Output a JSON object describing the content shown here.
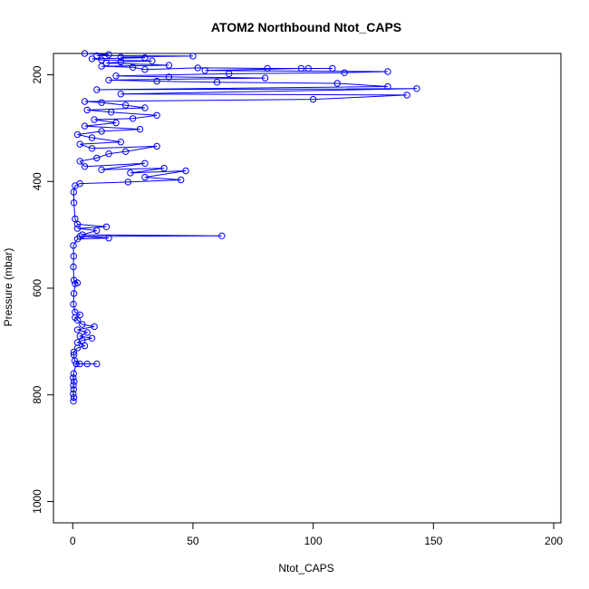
{
  "chart_data": {
    "type": "scatter",
    "title": "ATOM2 Northbound Ntot_CAPS",
    "xlabel": "Ntot_CAPS",
    "ylabel": "Pressure (mbar)",
    "xlim": [
      -8,
      203
    ],
    "ylim": [
      1040,
      160
    ],
    "y_inverted": true,
    "x_ticks": [
      0,
      50,
      100,
      150,
      200
    ],
    "y_ticks": [
      200,
      400,
      600,
      800,
      1000
    ],
    "grid": false,
    "legend": "none",
    "series": [
      {
        "style": "line+open-circles",
        "color": "#0000ff",
        "points": [
          [
            0.3,
            812
          ],
          [
            0.5,
            805
          ],
          [
            0.2,
            798
          ],
          [
            0.4,
            790
          ],
          [
            0.3,
            782
          ],
          [
            0.6,
            775
          ],
          [
            0.2,
            768
          ],
          [
            0.4,
            760
          ],
          [
            1.5,
            742
          ],
          [
            6,
            742
          ],
          [
            10,
            742
          ],
          [
            3,
            742
          ],
          [
            0.8,
            736
          ],
          [
            0.5,
            725
          ],
          [
            0.4,
            720
          ],
          [
            2,
            712
          ],
          [
            5,
            708
          ],
          [
            2,
            702
          ],
          [
            4,
            698
          ],
          [
            8,
            694
          ],
          [
            3,
            690
          ],
          [
            6,
            683
          ],
          [
            2,
            678
          ],
          [
            9,
            672
          ],
          [
            4,
            668
          ],
          [
            2,
            660
          ],
          [
            1,
            655
          ],
          [
            3,
            650
          ],
          [
            1,
            645
          ],
          [
            0.3,
            630
          ],
          [
            0.5,
            610
          ],
          [
            1,
            592
          ],
          [
            2,
            590
          ],
          [
            0.5,
            585
          ],
          [
            0.3,
            560
          ],
          [
            0.4,
            540
          ],
          [
            0.3,
            520
          ],
          [
            2,
            508
          ],
          [
            15,
            506
          ],
          [
            3,
            503
          ],
          [
            62,
            502
          ],
          [
            4,
            500
          ],
          [
            10,
            492
          ],
          [
            2,
            488
          ],
          [
            14,
            485
          ],
          [
            2,
            480
          ],
          [
            1,
            470
          ],
          [
            0.5,
            440
          ],
          [
            0.4,
            420
          ],
          [
            1,
            408
          ],
          [
            3,
            404
          ],
          [
            23,
            401
          ],
          [
            45,
            397
          ],
          [
            30,
            392
          ],
          [
            47,
            380
          ],
          [
            24,
            384
          ],
          [
            38,
            375
          ],
          [
            12,
            378
          ],
          [
            30,
            366
          ],
          [
            5,
            372
          ],
          [
            3,
            362
          ],
          [
            10,
            356
          ],
          [
            15,
            348
          ],
          [
            22,
            344
          ],
          [
            35,
            334
          ],
          [
            8,
            338
          ],
          [
            3,
            330
          ],
          [
            20,
            326
          ],
          [
            8,
            318
          ],
          [
            2,
            312
          ],
          [
            12,
            306
          ],
          [
            28,
            302
          ],
          [
            5,
            296
          ],
          [
            18,
            290
          ],
          [
            9,
            284
          ],
          [
            25,
            282
          ],
          [
            35,
            276
          ],
          [
            16,
            270
          ],
          [
            6,
            266
          ],
          [
            30,
            262
          ],
          [
            22,
            257
          ],
          [
            12,
            252
          ],
          [
            5,
            250
          ],
          [
            100,
            246
          ],
          [
            139,
            238
          ],
          [
            20,
            236
          ],
          [
            143,
            226
          ],
          [
            10,
            228
          ],
          [
            131,
            222
          ],
          [
            110,
            216
          ],
          [
            60,
            214
          ],
          [
            35,
            212
          ],
          [
            15,
            210
          ],
          [
            80,
            206
          ],
          [
            40,
            204
          ],
          [
            18,
            202
          ],
          [
            65,
            198
          ],
          [
            113,
            196
          ],
          [
            131,
            194
          ],
          [
            55,
            192
          ],
          [
            95,
            188
          ],
          [
            98,
            188
          ],
          [
            108,
            188
          ],
          [
            81,
            188
          ],
          [
            52,
            187
          ],
          [
            30,
            190
          ],
          [
            25,
            186
          ],
          [
            12,
            184
          ],
          [
            40,
            182
          ],
          [
            14,
            178
          ],
          [
            20,
            176
          ],
          [
            33,
            174
          ],
          [
            12,
            172
          ],
          [
            8,
            170
          ],
          [
            30,
            168
          ],
          [
            20,
            167
          ],
          [
            50,
            165
          ],
          [
            10,
            164
          ],
          [
            15,
            162
          ],
          [
            5,
            160
          ]
        ]
      }
    ]
  }
}
